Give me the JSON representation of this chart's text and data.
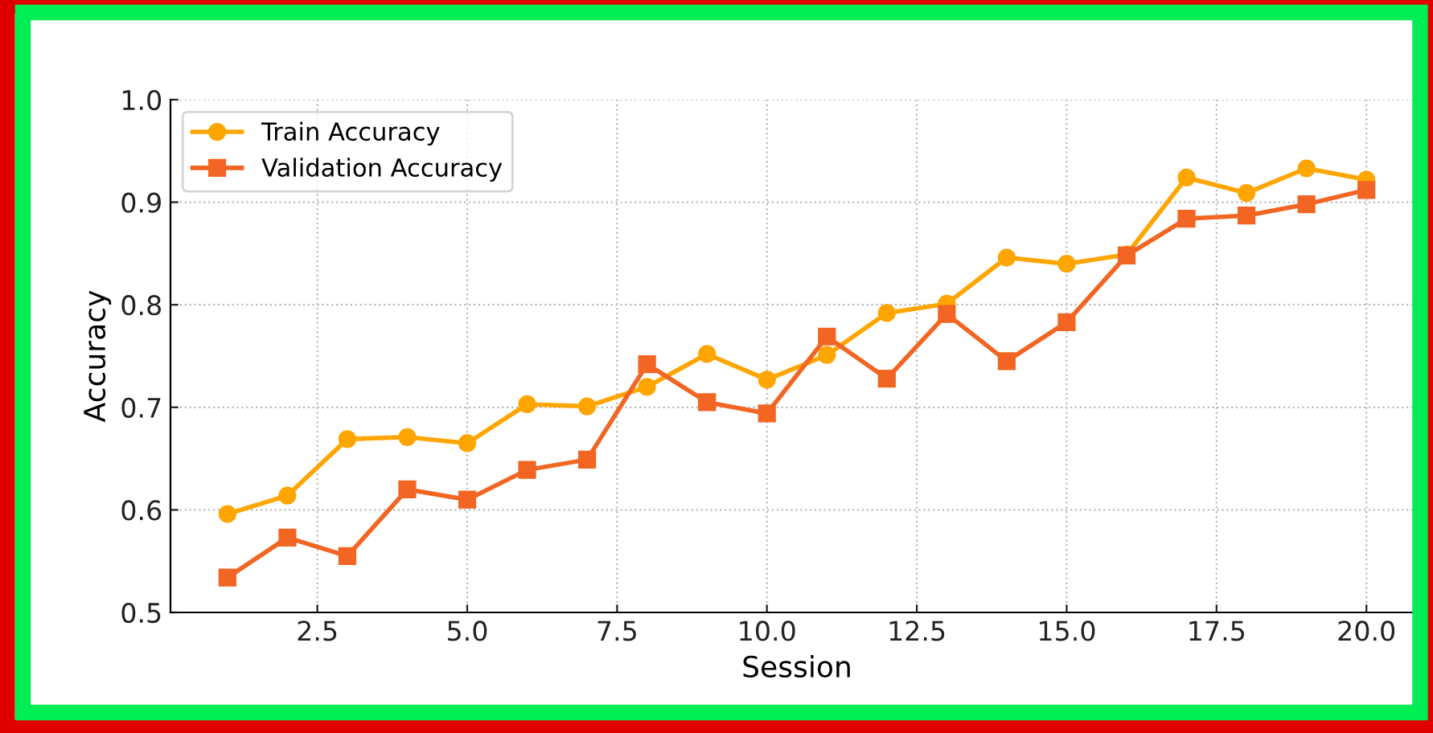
{
  "chart_data": {
    "type": "line",
    "xlabel": "Session",
    "ylabel": "Accuracy",
    "x": [
      1,
      2,
      3,
      4,
      5,
      6,
      7,
      8,
      9,
      10,
      11,
      12,
      13,
      14,
      15,
      16,
      17,
      18,
      19,
      20
    ],
    "series": [
      {
        "name": "Train Accuracy",
        "color": "#ffa500",
        "marker": "circle",
        "values": [
          0.596,
          0.614,
          0.669,
          0.671,
          0.665,
          0.703,
          0.701,
          0.72,
          0.752,
          0.727,
          0.751,
          0.792,
          0.801,
          0.846,
          0.84,
          0.849,
          0.924,
          0.909,
          0.933,
          0.922
        ]
      },
      {
        "name": "Validation Accuracy",
        "color": "#f26522",
        "marker": "square",
        "values": [
          0.534,
          0.573,
          0.555,
          0.62,
          0.61,
          0.639,
          0.649,
          0.742,
          0.705,
          0.694,
          0.769,
          0.728,
          0.791,
          0.745,
          0.783,
          0.848,
          0.884,
          0.887,
          0.898,
          0.912
        ]
      }
    ],
    "xlim": [
      0.05,
      20.95
    ],
    "ylim": [
      0.5,
      1.0
    ],
    "xticks": [
      {
        "value": 2.5,
        "label": "2.5"
      },
      {
        "value": 5,
        "label": "5.0"
      },
      {
        "value": 7.5,
        "label": "7.5"
      },
      {
        "value": 10,
        "label": "10.0"
      },
      {
        "value": 12.5,
        "label": "12.5"
      },
      {
        "value": 15,
        "label": "15.0"
      },
      {
        "value": 17.5,
        "label": "17.5"
      },
      {
        "value": 20,
        "label": "20.0"
      }
    ],
    "yticks": [
      0.5,
      0.6,
      0.7,
      0.8,
      0.9,
      {
        "value": 1,
        "label": "1.0"
      }
    ],
    "grid": true,
    "legend": "top left",
    "line_style": "solid"
  }
}
